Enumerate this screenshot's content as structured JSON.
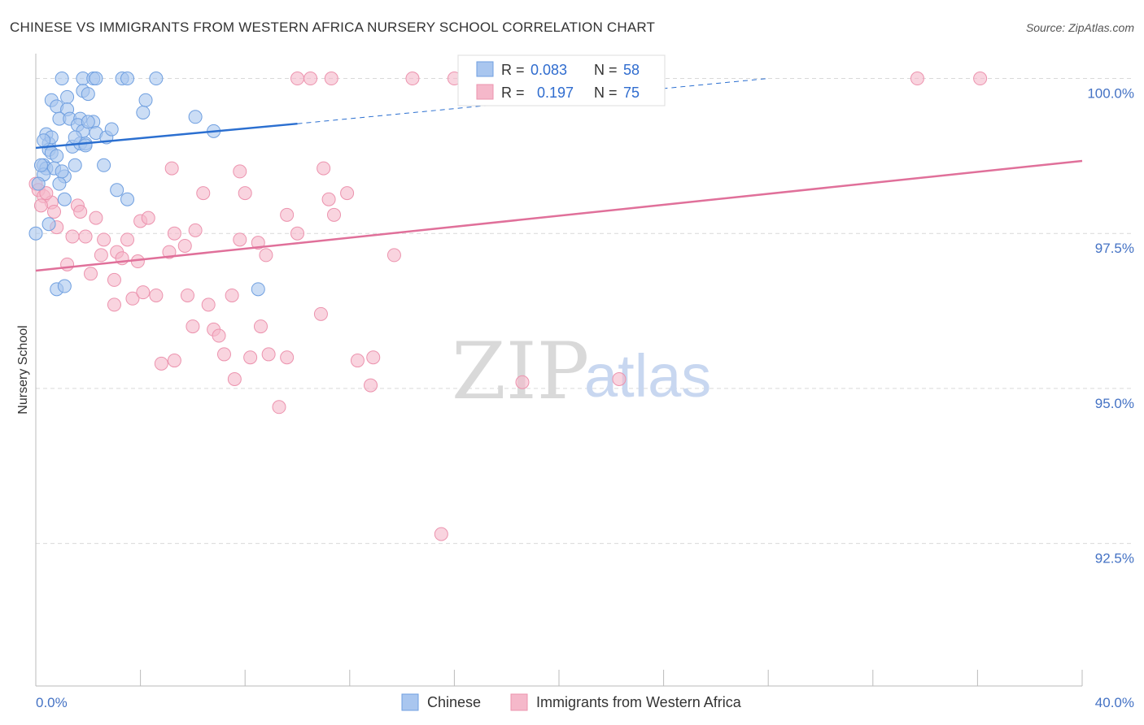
{
  "title": "CHINESE VS IMMIGRANTS FROM WESTERN AFRICA NURSERY SCHOOL CORRELATION CHART",
  "source": "Source: ZipAtlas.com",
  "watermark": {
    "zip": "ZIP",
    "atlas": "atlas"
  },
  "colors": {
    "blue_fill": "#a9c6ef",
    "blue_stroke": "#6f9fe0",
    "blue_line": "#2b6fd0",
    "pink_fill": "#f5b8ca",
    "pink_stroke": "#ec93ae",
    "pink_line": "#e0709a",
    "grid": "#d9d9d9",
    "axis_text": "#4472c4"
  },
  "legend": {
    "blue": {
      "r_label": "R = ",
      "r_value": "0.083",
      "n_label": "N = ",
      "n_value": "58"
    },
    "pink": {
      "r_label": "R = ",
      "r_value": "0.197",
      "n_label": "N = ",
      "n_value": "75"
    }
  },
  "chart_data": {
    "type": "scatter",
    "title": "CHINESE VS IMMIGRANTS FROM WESTERN AFRICA NURSERY SCHOOL CORRELATION CHART",
    "xlabel": "",
    "ylabel": "Nursery School",
    "xlim": [
      0,
      40
    ],
    "ylim": [
      90.2,
      100.4
    ],
    "x_tick_labels": {
      "min": "0.0%",
      "max": "40.0%"
    },
    "y_ticks": [
      {
        "value": 100.0,
        "label": "100.0%"
      },
      {
        "value": 97.5,
        "label": "97.5%"
      },
      {
        "value": 95.0,
        "label": "95.0%"
      },
      {
        "value": 92.5,
        "label": "92.5%"
      }
    ],
    "series": [
      {
        "name": "Chinese",
        "color": "#a9c6ef",
        "trend": {
          "x0": 0.0,
          "y0": 98.88,
          "x1": 10.0,
          "y1": 99.27,
          "dash_to_x": 28.0,
          "dash_to_y": 100.0
        },
        "points": [
          [
            1.0,
            100.0
          ],
          [
            1.8,
            100.0
          ],
          [
            2.2,
            100.0
          ],
          [
            2.3,
            100.0
          ],
          [
            3.3,
            100.0
          ],
          [
            3.5,
            100.0
          ],
          [
            4.6,
            100.0
          ],
          [
            1.8,
            99.8
          ],
          [
            2.0,
            99.75
          ],
          [
            0.6,
            99.65
          ],
          [
            1.2,
            99.7
          ],
          [
            4.2,
            99.65
          ],
          [
            0.8,
            99.55
          ],
          [
            1.2,
            99.5
          ],
          [
            4.1,
            99.45
          ],
          [
            0.9,
            99.35
          ],
          [
            1.3,
            99.35
          ],
          [
            1.7,
            99.35
          ],
          [
            2.2,
            99.3
          ],
          [
            6.1,
            99.38
          ],
          [
            1.6,
            99.25
          ],
          [
            0.4,
            99.1
          ],
          [
            1.8,
            99.15
          ],
          [
            2.3,
            99.12
          ],
          [
            6.8,
            99.15
          ],
          [
            2.7,
            99.05
          ],
          [
            0.5,
            98.95
          ],
          [
            1.4,
            98.9
          ],
          [
            1.7,
            98.95
          ],
          [
            0.5,
            98.85
          ],
          [
            0.6,
            98.8
          ],
          [
            0.8,
            98.75
          ],
          [
            0.3,
            98.6
          ],
          [
            0.4,
            98.55
          ],
          [
            0.7,
            98.55
          ],
          [
            1.5,
            98.6
          ],
          [
            2.6,
            98.6
          ],
          [
            0.3,
            98.45
          ],
          [
            1.1,
            98.42
          ],
          [
            0.1,
            98.3
          ],
          [
            0.9,
            98.3
          ],
          [
            3.1,
            98.2
          ],
          [
            3.5,
            98.05
          ],
          [
            1.1,
            98.05
          ],
          [
            0.5,
            97.65
          ],
          [
            0.0,
            97.5
          ],
          [
            0.8,
            96.6
          ],
          [
            1.1,
            96.65
          ],
          [
            8.5,
            96.6
          ],
          [
            1.9,
            98.95
          ],
          [
            0.6,
            99.05
          ],
          [
            1.5,
            99.05
          ],
          [
            0.2,
            98.6
          ],
          [
            1.0,
            98.5
          ],
          [
            2.0,
            99.3
          ],
          [
            2.9,
            99.18
          ],
          [
            0.3,
            99.0
          ],
          [
            1.9,
            98.92
          ]
        ]
      },
      {
        "name": "Immigrants from Western Africa",
        "color": "#f5b8ca",
        "trend": {
          "x0": 0.0,
          "y0": 96.9,
          "x1": 40.0,
          "y1": 98.67
        },
        "points": [
          [
            10.0,
            100.0
          ],
          [
            10.5,
            100.0
          ],
          [
            11.3,
            100.0
          ],
          [
            14.4,
            100.0
          ],
          [
            16.0,
            100.0
          ],
          [
            33.7,
            100.0
          ],
          [
            36.1,
            100.0
          ],
          [
            0.0,
            98.3
          ],
          [
            0.1,
            98.2
          ],
          [
            0.3,
            98.1
          ],
          [
            0.6,
            98.0
          ],
          [
            0.2,
            97.95
          ],
          [
            0.7,
            97.85
          ],
          [
            1.6,
            97.95
          ],
          [
            1.7,
            97.85
          ],
          [
            2.3,
            97.75
          ],
          [
            0.8,
            97.6
          ],
          [
            1.4,
            97.45
          ],
          [
            1.9,
            97.45
          ],
          [
            2.6,
            97.4
          ],
          [
            3.5,
            97.4
          ],
          [
            4.0,
            97.7
          ],
          [
            4.3,
            97.75
          ],
          [
            5.3,
            97.5
          ],
          [
            6.1,
            97.55
          ],
          [
            5.1,
            97.2
          ],
          [
            5.7,
            97.3
          ],
          [
            2.5,
            97.15
          ],
          [
            3.1,
            97.2
          ],
          [
            3.3,
            97.1
          ],
          [
            3.9,
            97.05
          ],
          [
            7.8,
            97.4
          ],
          [
            8.5,
            97.35
          ],
          [
            8.8,
            97.15
          ],
          [
            9.6,
            97.8
          ],
          [
            10.0,
            97.5
          ],
          [
            11.2,
            98.05
          ],
          [
            11.4,
            97.8
          ],
          [
            11.9,
            98.15
          ],
          [
            13.7,
            97.15
          ],
          [
            5.2,
            98.55
          ],
          [
            6.4,
            98.15
          ],
          [
            7.8,
            98.5
          ],
          [
            8.0,
            98.15
          ],
          [
            11.0,
            98.55
          ],
          [
            1.2,
            97.0
          ],
          [
            2.1,
            96.85
          ],
          [
            3.0,
            96.75
          ],
          [
            3.0,
            96.35
          ],
          [
            3.7,
            96.45
          ],
          [
            4.1,
            96.55
          ],
          [
            4.6,
            96.5
          ],
          [
            5.8,
            96.5
          ],
          [
            6.6,
            96.35
          ],
          [
            7.5,
            96.5
          ],
          [
            6.0,
            96.0
          ],
          [
            6.8,
            95.95
          ],
          [
            7.0,
            95.85
          ],
          [
            8.6,
            96.0
          ],
          [
            10.9,
            96.2
          ],
          [
            7.2,
            95.55
          ],
          [
            8.2,
            95.5
          ],
          [
            8.9,
            95.55
          ],
          [
            9.6,
            95.5
          ],
          [
            4.8,
            95.4
          ],
          [
            5.3,
            95.45
          ],
          [
            12.3,
            95.45
          ],
          [
            12.9,
            95.5
          ],
          [
            7.6,
            95.15
          ],
          [
            12.8,
            95.05
          ],
          [
            18.6,
            95.1
          ],
          [
            22.3,
            95.15
          ],
          [
            9.3,
            94.7
          ],
          [
            15.5,
            92.65
          ],
          [
            0.4,
            98.15
          ]
        ]
      }
    ]
  }
}
